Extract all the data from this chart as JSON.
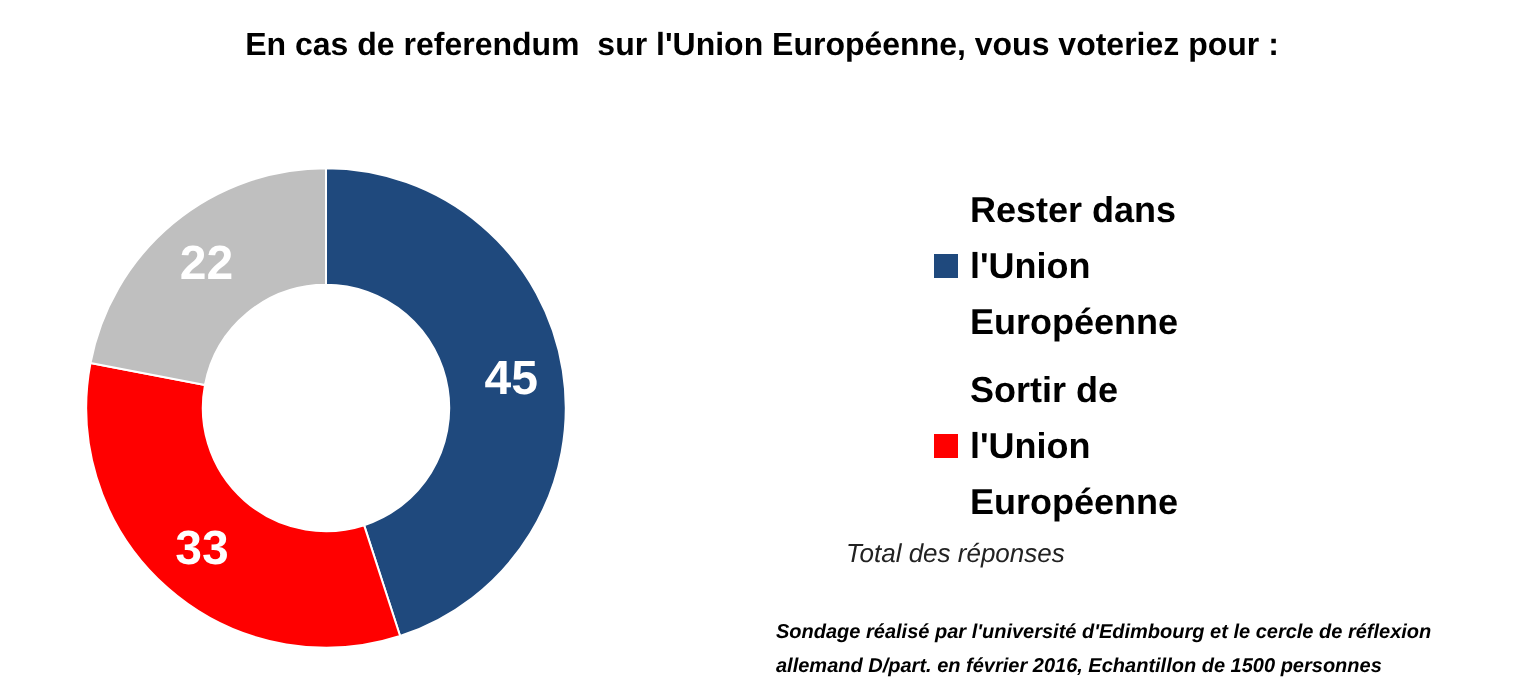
{
  "chart_data": {
    "type": "donut",
    "title": "En cas de referendum  sur l'Union Européenne, vous voteriez pour :",
    "categories": [
      "Rester dans l'Union Européenne",
      "Sortir de l'Union Européenne",
      null
    ],
    "values": [
      45,
      33,
      22
    ],
    "colors": [
      "#1f497d",
      "#ff0000",
      "#bfbfbf"
    ],
    "data_labels": true,
    "legend": "right",
    "annotations": [
      "Total des réponses",
      "Sondage réalisé par l'université d'Edimbourg et le cercle de réflexion allemand D/part. en février 2016, Echantillon de 1500 personnes"
    ]
  }
}
